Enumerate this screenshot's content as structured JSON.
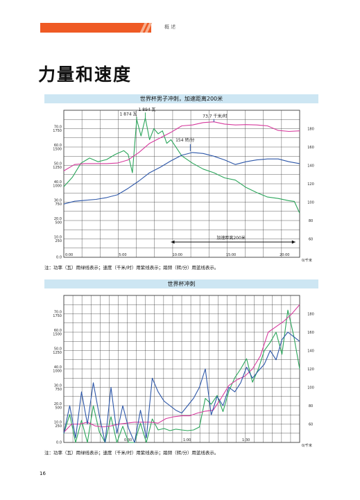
{
  "header": {
    "section": "概 述"
  },
  "page_title": "力量和速度",
  "page_number": "16",
  "colors": {
    "power": "#2aa55a",
    "speed": "#d63a9d",
    "cadence": "#2c56a8",
    "header_accent": "#ef5a24",
    "title_band": "#cde6f3"
  },
  "chart1": {
    "title": "世界杯男子冲刺，加速距离200米",
    "note": "注：功率（瓦）用绿线表示；速度（千米/时）用紫线表示；踏频（转/分）用蓝线表示。",
    "annotations": {
      "peak1": "1 874 瓦",
      "peak2": "1 894 瓦",
      "speed_peak": "73.7 千米/时",
      "cadence_peak": "154 转/分",
      "accel": "加速距离200米"
    }
  },
  "chart2": {
    "title": "世界杯冲刺",
    "note": "注：功率（瓦）用绿线表示；速度（千米/时）用紫线表示；踏频（转/分）用蓝线表示。"
  },
  "chart_data": [
    {
      "type": "line",
      "title": "世界杯男子冲刺，加速距离200米",
      "x_ticks": [
        "0:00",
        "5:00",
        "10:00",
        "15:00",
        "20:00"
      ],
      "x_unit": "0/千米",
      "y_left_ticks": [
        {
          "speed": "0.0",
          "power": ""
        },
        {
          "speed": "10.0",
          "power": "250"
        },
        {
          "speed": "20.0",
          "power": "500"
        },
        {
          "speed": "30.0",
          "power": "750"
        },
        {
          "speed": "40.0",
          "power": "1000"
        },
        {
          "speed": "50.0",
          "power": "1250"
        },
        {
          "speed": "60.0",
          "power": "1500"
        },
        {
          "speed": "70.0",
          "power": "1750"
        }
      ],
      "y_right_ticks": [
        "60",
        "80",
        "100",
        "120",
        "140",
        "160",
        "180"
      ],
      "ylim_speed": [
        0,
        80
      ],
      "ylim_power": [
        0,
        2000
      ],
      "ylim_cadence": [
        40,
        200
      ],
      "x_range": [
        0,
        22
      ],
      "series": [
        {
          "color": "#2aa55a",
          "unit": "W",
          "x": [
            0,
            0.8,
            1.6,
            2.4,
            3.2,
            4,
            4.8,
            5.6,
            6,
            6.4,
            6.8,
            7.2,
            7.6,
            8,
            8.4,
            8.8,
            9.2,
            9.6,
            10,
            11,
            12,
            13,
            14,
            15,
            16,
            17,
            18,
            19,
            20,
            21,
            21.5,
            22
          ],
          "values": [
            960,
            1090,
            1280,
            1350,
            1300,
            1330,
            1400,
            1450,
            1400,
            1150,
            1874,
            1650,
            1894,
            1600,
            1750,
            1680,
            1720,
            1550,
            1600,
            1380,
            1280,
            1200,
            1150,
            1080,
            1050,
            950,
            880,
            820,
            800,
            770,
            760,
            600
          ]
        },
        {
          "color": "#d63a9d",
          "unit": "km/h",
          "x": [
            0,
            1,
            2,
            3,
            4,
            5,
            6,
            7,
            8,
            9,
            10,
            11,
            12,
            13,
            14,
            15,
            16,
            17,
            18,
            19,
            20,
            21,
            22
          ],
          "values": [
            47,
            50.5,
            51,
            51,
            51,
            51.3,
            53,
            57,
            62,
            65,
            68,
            71.5,
            72,
            73.3,
            73.7,
            72.5,
            72,
            72.2,
            72,
            71.5,
            69,
            68.5,
            68.8
          ]
        },
        {
          "color": "#2c56a8",
          "unit": "rpm",
          "x": [
            0,
            1,
            2,
            3,
            4,
            5,
            6,
            7,
            8,
            9,
            10,
            11,
            12,
            13,
            14,
            15,
            16,
            17,
            18,
            19,
            20,
            21,
            22
          ],
          "values": [
            98,
            101,
            102,
            103,
            105,
            108,
            115,
            123,
            132,
            138,
            145,
            151,
            154,
            153,
            150,
            146,
            141,
            144,
            146,
            147,
            147,
            144,
            142
          ]
        }
      ]
    },
    {
      "type": "line",
      "title": "世界杯冲刺",
      "x_ticks": [
        "0:30",
        "1:00",
        "1:30"
      ],
      "x_unit": "0/千米",
      "y_left_ticks": [
        {
          "speed": "0.0",
          "power": ""
        },
        {
          "speed": "10.0",
          "power": "250"
        },
        {
          "speed": "20.0",
          "power": "500"
        },
        {
          "speed": "30.0",
          "power": "750"
        },
        {
          "speed": "40.0",
          "power": "1000"
        },
        {
          "speed": "50.0",
          "power": "1250"
        },
        {
          "speed": "60.0",
          "power": "1500"
        },
        {
          "speed": "70.0",
          "power": "1750"
        }
      ],
      "y_right_ticks": [
        "60",
        "80",
        "100",
        "120",
        "140",
        "160",
        "180"
      ],
      "ylim_speed": [
        0,
        80
      ],
      "ylim_power": [
        0,
        2000
      ],
      "ylim_cadence": [
        40,
        200
      ],
      "x_range": [
        0,
        120
      ],
      "series": [
        {
          "color": "#2aa55a",
          "unit": "W",
          "x": [
            0,
            3,
            6,
            9,
            12,
            15,
            18,
            21,
            24,
            27,
            30,
            33,
            36,
            39,
            42,
            45,
            48,
            51,
            54,
            57,
            60,
            63,
            66,
            69,
            72,
            75,
            78,
            81,
            84,
            87,
            90,
            93,
            96,
            99,
            102,
            105,
            108,
            111,
            114,
            117,
            120
          ],
          "values": [
            120,
            380,
            0,
            300,
            0,
            500,
            150,
            0,
            350,
            0,
            220,
            0,
            0,
            260,
            0,
            320,
            170,
            190,
            160,
            180,
            170,
            160,
            170,
            210,
            600,
            520,
            640,
            420,
            700,
            880,
            1000,
            1140,
            820,
            1000,
            1250,
            1360,
            1500,
            1200,
            1800,
            1450,
            1000
          ]
        },
        {
          "color": "#d63a9d",
          "unit": "km/h",
          "x": [
            0,
            4,
            8,
            12,
            16,
            20,
            24,
            28,
            32,
            36,
            40,
            44,
            48,
            52,
            56,
            60,
            64,
            68,
            72,
            76,
            80,
            84,
            88,
            92,
            96,
            100,
            104,
            108,
            112,
            116,
            120
          ],
          "values": [
            5.5,
            10,
            10,
            11,
            9,
            8.5,
            9,
            10,
            10.5,
            11,
            11,
            11,
            10.5,
            13,
            14,
            14.5,
            14.5,
            16,
            17,
            17.5,
            24,
            31,
            34,
            36,
            40,
            47,
            60,
            63,
            66,
            70,
            75
          ]
        },
        {
          "color": "#2c56a8",
          "unit": "rpm",
          "x": [
            0,
            3,
            6,
            9,
            12,
            15,
            18,
            21,
            24,
            27,
            30,
            33,
            36,
            39,
            42,
            45,
            48,
            51,
            54,
            57,
            60,
            63,
            66,
            69,
            72,
            75,
            78,
            81,
            84,
            87,
            90,
            93,
            96,
            99,
            102,
            105,
            108,
            111,
            114,
            117,
            120
          ],
          "values": [
            50,
            80,
            45,
            95,
            60,
            105,
            70,
            40,
            100,
            50,
            80,
            55,
            40,
            75,
            45,
            110,
            95,
            85,
            80,
            75,
            72,
            80,
            88,
            100,
            120,
            70,
            90,
            80,
            100,
            95,
            105,
            122,
            110,
            118,
            125,
            140,
            130,
            152,
            160,
            155,
            150
          ]
        }
      ]
    }
  ]
}
